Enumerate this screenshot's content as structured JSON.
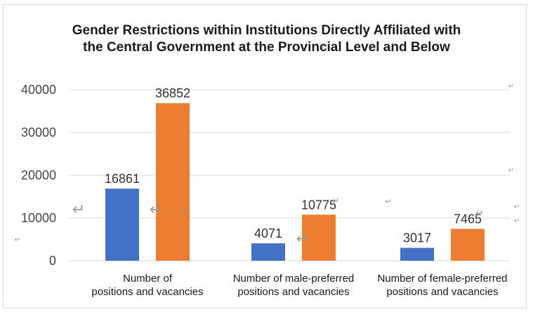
{
  "chart_data": {
    "type": "bar",
    "title": "Gender Restrictions within Institutions Directly Affiliated with the Central Government at the Provincial Level and Below",
    "title_lines": [
      "Gender Restrictions within Institutions Directly Affiliated with",
      "the Central Government at the Provincial Level and Below"
    ],
    "categories": [
      [
        "Number of",
        "positions and vacancies"
      ],
      [
        "Number of male-preferred",
        "positions and vacancies"
      ],
      [
        "Number of female-preferred",
        "positions and vacancies"
      ]
    ],
    "series": [
      {
        "values": [
          16861,
          4071,
          3017
        ],
        "color": "#4472c4"
      },
      {
        "values": [
          36852,
          10775,
          7465
        ],
        "color": "#ed7d31"
      }
    ],
    "ylim": [
      0,
      40000
    ],
    "yticks": [
      0,
      10000,
      20000,
      30000,
      40000
    ],
    "grid": true,
    "legend": "none",
    "xlabel": "",
    "ylabel": ""
  }
}
